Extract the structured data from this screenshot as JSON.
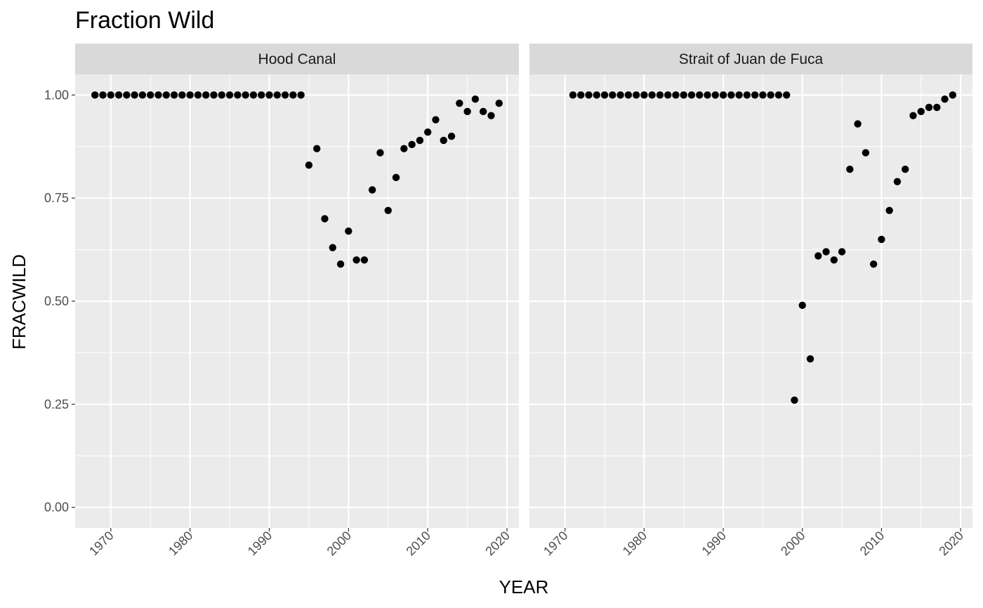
{
  "chart_data": {
    "type": "scatter",
    "title": "Fraction Wild",
    "xlabel": "YEAR",
    "ylabel": "FRACWILD",
    "xlim": [
      1965.5,
      2021.5
    ],
    "ylim": [
      -0.05,
      1.05
    ],
    "x_ticks": [
      1970,
      1980,
      1990,
      2000,
      2010,
      2020
    ],
    "x_tick_labels": [
      "1970",
      "1980",
      "1990",
      "2000",
      "2010",
      "2020"
    ],
    "y_ticks": [
      0,
      0.25,
      0.5,
      0.75,
      1
    ],
    "y_tick_labels": [
      "0.00",
      "0.25",
      "0.50",
      "0.75",
      "1.00"
    ],
    "grid": true,
    "facets": [
      {
        "label": "Hood Canal",
        "x": [
          1968,
          1969,
          1970,
          1971,
          1972,
          1973,
          1974,
          1975,
          1976,
          1977,
          1978,
          1979,
          1980,
          1981,
          1982,
          1983,
          1984,
          1985,
          1986,
          1987,
          1988,
          1989,
          1990,
          1991,
          1992,
          1993,
          1994,
          1995,
          1996,
          1997,
          1998,
          1999,
          2000,
          2001,
          2002,
          2003,
          2004,
          2005,
          2006,
          2007,
          2008,
          2009,
          2010,
          2011,
          2012,
          2013,
          2014,
          2015,
          2016,
          2017,
          2018,
          2019
        ],
        "y": [
          1,
          1,
          1,
          1,
          1,
          1,
          1,
          1,
          1,
          1,
          1,
          1,
          1,
          1,
          1,
          1,
          1,
          1,
          1,
          1,
          1,
          1,
          1,
          1,
          1,
          1,
          1,
          0.83,
          0.87,
          0.7,
          0.63,
          0.59,
          0.67,
          0.6,
          0.6,
          0.77,
          0.86,
          0.72,
          0.8,
          0.87,
          0.88,
          0.89,
          0.91,
          0.94,
          0.89,
          0.9,
          0.98,
          0.96,
          0.99,
          0.96,
          0.95,
          0.98
        ]
      },
      {
        "label": "Strait of Juan de Fuca",
        "x": [
          1971,
          1972,
          1973,
          1974,
          1975,
          1976,
          1977,
          1978,
          1979,
          1980,
          1981,
          1982,
          1983,
          1984,
          1985,
          1986,
          1987,
          1988,
          1989,
          1990,
          1991,
          1992,
          1993,
          1994,
          1995,
          1996,
          1997,
          1998,
          1999,
          2000,
          2001,
          2002,
          2003,
          2004,
          2005,
          2006,
          2007,
          2008,
          2009,
          2010,
          2011,
          2012,
          2013,
          2014,
          2015,
          2016,
          2017,
          2018,
          2019
        ],
        "y": [
          1,
          1,
          1,
          1,
          1,
          1,
          1,
          1,
          1,
          1,
          1,
          1,
          1,
          1,
          1,
          1,
          1,
          1,
          1,
          1,
          1,
          1,
          1,
          1,
          1,
          1,
          1,
          1,
          0.26,
          0.49,
          0.36,
          0.61,
          0.62,
          0.6,
          0.62,
          0.82,
          0.93,
          0.86,
          0.59,
          0.65,
          0.72,
          0.79,
          0.82,
          0.95,
          0.96,
          0.97,
          0.97,
          0.99,
          1.0
        ]
      }
    ]
  }
}
